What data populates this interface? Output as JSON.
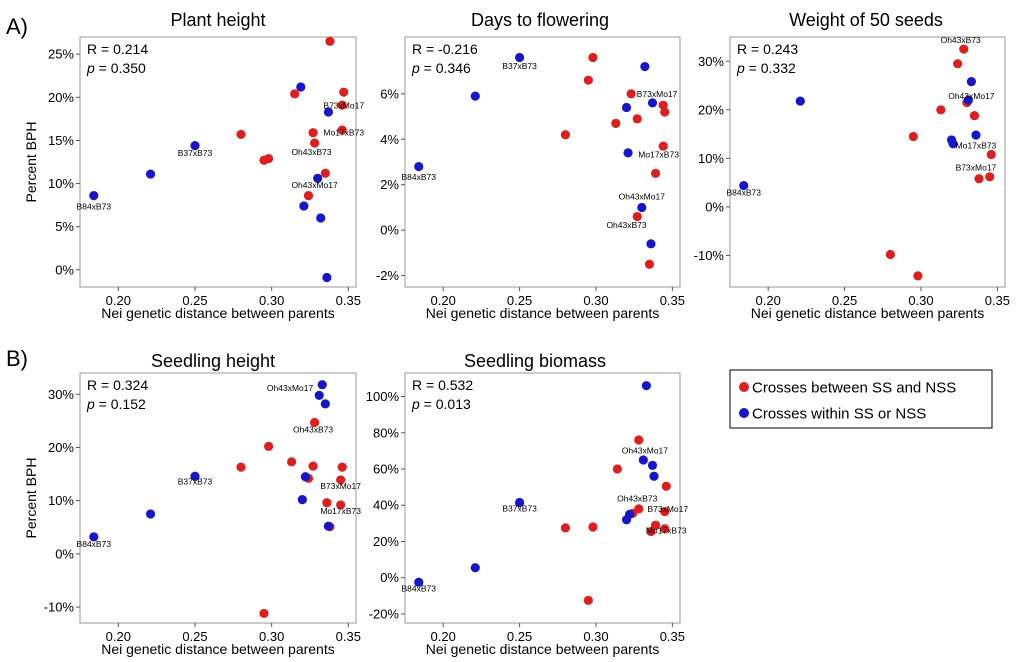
{
  "figure": {
    "row_labels": [
      "A)",
      "B)"
    ],
    "legend": {
      "items": [
        {
          "label": "Crosses between SS and NSS",
          "color": "#dd1f1f"
        },
        {
          "label": "Crosses within SS or NSS",
          "color": "#1717c9"
        }
      ]
    }
  },
  "chart_data": [
    {
      "type": "scatter",
      "title": "Plant height",
      "xlabel": "Nei genetic distance between parents",
      "ylabel": "Percent BPH",
      "xlim": [
        0.175,
        0.355
      ],
      "ylim": [
        -2,
        27
      ],
      "xticks": [
        0.2,
        0.25,
        0.3,
        0.35
      ],
      "xticklabels": [
        "0.20",
        "0.25",
        "0.30",
        "0.35"
      ],
      "yticks": [
        0,
        5,
        10,
        15,
        20,
        25
      ],
      "yticklabels": [
        "0%",
        "5%",
        "10%",
        "15%",
        "20%",
        "25%"
      ],
      "stats": {
        "r": "R = 0.214",
        "p_label": "p",
        "p_value": " = 0.350"
      },
      "series": [
        {
          "name": "Crosses between SS and NSS",
          "color": "#dd1f1f",
          "points": [
            [
              0.338,
              26.5
            ],
            [
              0.347,
              20.6
            ],
            [
              0.315,
              20.4
            ],
            [
              0.346,
              19.1
            ],
            [
              0.346,
              16.2
            ],
            [
              0.327,
              15.9
            ],
            [
              0.28,
              15.7
            ],
            [
              0.328,
              14.7
            ],
            [
              0.298,
              12.9
            ],
            [
              0.295,
              12.7
            ],
            [
              0.335,
              11.2
            ],
            [
              0.324,
              8.6
            ]
          ]
        },
        {
          "name": "Crosses within SS or NSS",
          "color": "#1717c9",
          "points": [
            [
              0.319,
              21.2
            ],
            [
              0.337,
              18.3
            ],
            [
              0.25,
              14.4
            ],
            [
              0.221,
              11.1
            ],
            [
              0.33,
              10.6
            ],
            [
              0.184,
              8.6
            ],
            [
              0.321,
              7.4
            ],
            [
              0.332,
              6.0
            ],
            [
              0.336,
              -0.9
            ]
          ]
        }
      ],
      "annotations": [
        {
          "text": "B73xMo17",
          "x": 0.347,
          "y": 18.7
        },
        {
          "text": "Mo17xB73",
          "x": 0.347,
          "y": 15.6
        },
        {
          "text": "Oh43xB73",
          "x": 0.326,
          "y": 13.3
        },
        {
          "text": "B37xB73",
          "x": 0.25,
          "y": 13.2
        },
        {
          "text": "Oh43xMo17",
          "x": 0.328,
          "y": 9.5
        },
        {
          "text": "B84xB73",
          "x": 0.184,
          "y": 7.0
        }
      ]
    },
    {
      "type": "scatter",
      "title": "Days to flowering",
      "xlabel": "Nei genetic distance between parents",
      "ylabel": "",
      "xlim": [
        0.175,
        0.355
      ],
      "ylim": [
        -2.5,
        8.5
      ],
      "xticks": [
        0.2,
        0.25,
        0.3,
        0.35
      ],
      "xticklabels": [
        "0.20",
        "0.25",
        "0.30",
        "0.35"
      ],
      "yticks": [
        -2,
        0,
        2,
        4,
        6
      ],
      "yticklabels": [
        "-2%",
        "0%",
        "2%",
        "4%",
        "6%"
      ],
      "stats": {
        "r": "R = -0.216",
        "p_label": "p",
        "p_value": " = 0.346"
      },
      "series": [
        {
          "name": "Crosses between SS and NSS",
          "color": "#dd1f1f",
          "points": [
            [
              0.298,
              7.6
            ],
            [
              0.295,
              6.6
            ],
            [
              0.323,
              6.0
            ],
            [
              0.344,
              5.5
            ],
            [
              0.345,
              5.2
            ],
            [
              0.327,
              4.9
            ],
            [
              0.313,
              4.7
            ],
            [
              0.28,
              4.2
            ],
            [
              0.344,
              3.7
            ],
            [
              0.339,
              2.5
            ],
            [
              0.327,
              0.6
            ],
            [
              0.335,
              -1.5
            ]
          ]
        },
        {
          "name": "Crosses within SS or NSS",
          "color": "#1717c9",
          "points": [
            [
              0.25,
              7.6
            ],
            [
              0.332,
              7.2
            ],
            [
              0.221,
              5.9
            ],
            [
              0.337,
              5.6
            ],
            [
              0.32,
              5.4
            ],
            [
              0.321,
              3.4
            ],
            [
              0.184,
              2.8
            ],
            [
              0.33,
              1.0
            ],
            [
              0.336,
              -0.6
            ]
          ]
        }
      ],
      "annotations": [
        {
          "text": "B37xB73",
          "x": 0.25,
          "y": 7.1
        },
        {
          "text": "B73xMo17",
          "x": 0.34,
          "y": 5.85
        },
        {
          "text": "Mo17xB73",
          "x": 0.341,
          "y": 3.2
        },
        {
          "text": "B84xB73",
          "x": 0.184,
          "y": 2.2
        },
        {
          "text": "Oh43xMo17",
          "x": 0.33,
          "y": 1.35
        },
        {
          "text": "Oh43xB73",
          "x": 0.32,
          "y": 0.1
        }
      ]
    },
    {
      "type": "scatter",
      "title": "Weight of 50 seeds",
      "xlabel": "Nei genetic distance between parents",
      "ylabel": "",
      "xlim": [
        0.175,
        0.355
      ],
      "ylim": [
        -16.5,
        35
      ],
      "xticks": [
        0.2,
        0.25,
        0.3,
        0.35
      ],
      "xticklabels": [
        "0.20",
        "0.25",
        "0.30",
        "0.35"
      ],
      "yticks": [
        -10,
        0,
        10,
        20,
        30
      ],
      "yticklabels": [
        "-10%",
        "0%",
        "10%",
        "20%",
        "30%"
      ],
      "stats": {
        "r": "R = 0.243",
        "p_label": "p",
        "p_value": " = 0.332"
      },
      "series": [
        {
          "name": "Crosses between SS and NSS",
          "color": "#dd1f1f",
          "points": [
            [
              0.328,
              32.5
            ],
            [
              0.324,
              29.5
            ],
            [
              0.33,
              21.5
            ],
            [
              0.313,
              20.0
            ],
            [
              0.335,
              18.8
            ],
            [
              0.295,
              14.5
            ],
            [
              0.346,
              10.8
            ],
            [
              0.345,
              6.2
            ],
            [
              0.338,
              5.8
            ],
            [
              0.28,
              -9.8
            ],
            [
              0.298,
              -14.2
            ]
          ]
        },
        {
          "name": "Crosses within SS or NSS",
          "color": "#1717c9",
          "points": [
            [
              0.333,
              25.8
            ],
            [
              0.331,
              22.0
            ],
            [
              0.221,
              21.8
            ],
            [
              0.336,
              14.8
            ],
            [
              0.32,
              13.8
            ],
            [
              0.321,
              13.0
            ],
            [
              0.184,
              4.4
            ]
          ]
        }
      ],
      "annotations": [
        {
          "text": "Oh43xB73",
          "x": 0.326,
          "y": 33.8
        },
        {
          "text": "Oh43xMo17",
          "x": 0.333,
          "y": 22.2
        },
        {
          "text": "Mo17xB73",
          "x": 0.336,
          "y": 12.0
        },
        {
          "text": "B73xMo17",
          "x": 0.336,
          "y": 7.5
        },
        {
          "text": "B84xB73",
          "x": 0.184,
          "y": 2.3
        }
      ]
    },
    {
      "type": "scatter",
      "title": "Seedling height",
      "xlabel": "Nei genetic distance between parents",
      "ylabel": "Percent BPH",
      "xlim": [
        0.175,
        0.355
      ],
      "ylim": [
        -13,
        34
      ],
      "xticks": [
        0.2,
        0.25,
        0.3,
        0.35
      ],
      "xticklabels": [
        "0.20",
        "0.25",
        "0.30",
        "0.35"
      ],
      "yticks": [
        -10,
        0,
        10,
        20,
        30
      ],
      "yticklabels": [
        "-10%",
        "0%",
        "10%",
        "20%",
        "30%"
      ],
      "stats": {
        "r": "R = 0.324",
        "p_label": "p",
        "p_value": " = 0.152"
      },
      "series": [
        {
          "name": "Crosses between SS and NSS",
          "color": "#dd1f1f",
          "points": [
            [
              0.328,
              24.7
            ],
            [
              0.298,
              20.2
            ],
            [
              0.313,
              17.3
            ],
            [
              0.28,
              16.3
            ],
            [
              0.327,
              16.5
            ],
            [
              0.346,
              16.3
            ],
            [
              0.324,
              14.2
            ],
            [
              0.345,
              13.9
            ],
            [
              0.336,
              9.6
            ],
            [
              0.345,
              9.2
            ],
            [
              0.338,
              5.1
            ],
            [
              0.295,
              -11.2
            ]
          ]
        },
        {
          "name": "Crosses within SS or NSS",
          "color": "#1717c9",
          "points": [
            [
              0.333,
              31.8
            ],
            [
              0.331,
              29.8
            ],
            [
              0.335,
              28.2
            ],
            [
              0.25,
              14.6
            ],
            [
              0.322,
              14.5
            ],
            [
              0.32,
              10.2
            ],
            [
              0.221,
              7.5
            ],
            [
              0.337,
              5.2
            ],
            [
              0.184,
              3.2
            ]
          ]
        }
      ],
      "annotations": [
        {
          "text": "Oh43xMo17",
          "x": 0.312,
          "y": 30.6
        },
        {
          "text": "Oh43xB73",
          "x": 0.327,
          "y": 22.8
        },
        {
          "text": "B37xB73",
          "x": 0.25,
          "y": 13.0
        },
        {
          "text": "B73xMo17",
          "x": 0.345,
          "y": 12.2
        },
        {
          "text": "Mo17xB73",
          "x": 0.345,
          "y": 7.5
        },
        {
          "text": "B84xB73",
          "x": 0.184,
          "y": 1.3
        }
      ]
    },
    {
      "type": "scatter",
      "title": "Seedling biomass",
      "xlabel": "Nei genetic distance between parents",
      "ylabel": "",
      "xlim": [
        0.175,
        0.355
      ],
      "ylim": [
        -25,
        113
      ],
      "xticks": [
        0.2,
        0.25,
        0.3,
        0.35
      ],
      "xticklabels": [
        "0.20",
        "0.25",
        "0.30",
        "0.35"
      ],
      "yticks": [
        -20,
        0,
        20,
        40,
        60,
        80,
        100
      ],
      "yticklabels": [
        "-20%",
        "0%",
        "20%",
        "40%",
        "60%",
        "80%",
        "100%"
      ],
      "stats": {
        "r": "R = 0.532",
        "p_label": "p",
        "p_value": " = 0.013"
      },
      "series": [
        {
          "name": "Crosses between SS and NSS",
          "color": "#dd1f1f",
          "points": [
            [
              0.328,
              76.0
            ],
            [
              0.314,
              60.0
            ],
            [
              0.346,
              50.5
            ],
            [
              0.328,
              38.0
            ],
            [
              0.324,
              35.5
            ],
            [
              0.345,
              36.5
            ],
            [
              0.339,
              29.0
            ],
            [
              0.28,
              27.5
            ],
            [
              0.298,
              28.0
            ],
            [
              0.345,
              27.0
            ],
            [
              0.336,
              25.5
            ],
            [
              0.295,
              -12.5
            ]
          ]
        },
        {
          "name": "Crosses within SS or NSS",
          "color": "#1717c9",
          "points": [
            [
              0.333,
              106.0
            ],
            [
              0.331,
              65.0
            ],
            [
              0.337,
              62.0
            ],
            [
              0.338,
              56.0
            ],
            [
              0.25,
              41.5
            ],
            [
              0.322,
              35.0
            ],
            [
              0.32,
              32.0
            ],
            [
              0.221,
              5.5
            ],
            [
              0.184,
              -2.5
            ]
          ]
        }
      ],
      "annotations": [
        {
          "text": "Oh43xMo17",
          "x": 0.332,
          "y": 68.5
        },
        {
          "text": "Oh43xB73",
          "x": 0.327,
          "y": 42.0
        },
        {
          "text": "B37xB73",
          "x": 0.25,
          "y": 36.5
        },
        {
          "text": "B73xMo17",
          "x": 0.347,
          "y": 36.3
        },
        {
          "text": "Mo17xB73",
          "x": 0.346,
          "y": 24.5
        },
        {
          "text": "B84xB73",
          "x": 0.184,
          "y": -7.5
        }
      ]
    }
  ]
}
